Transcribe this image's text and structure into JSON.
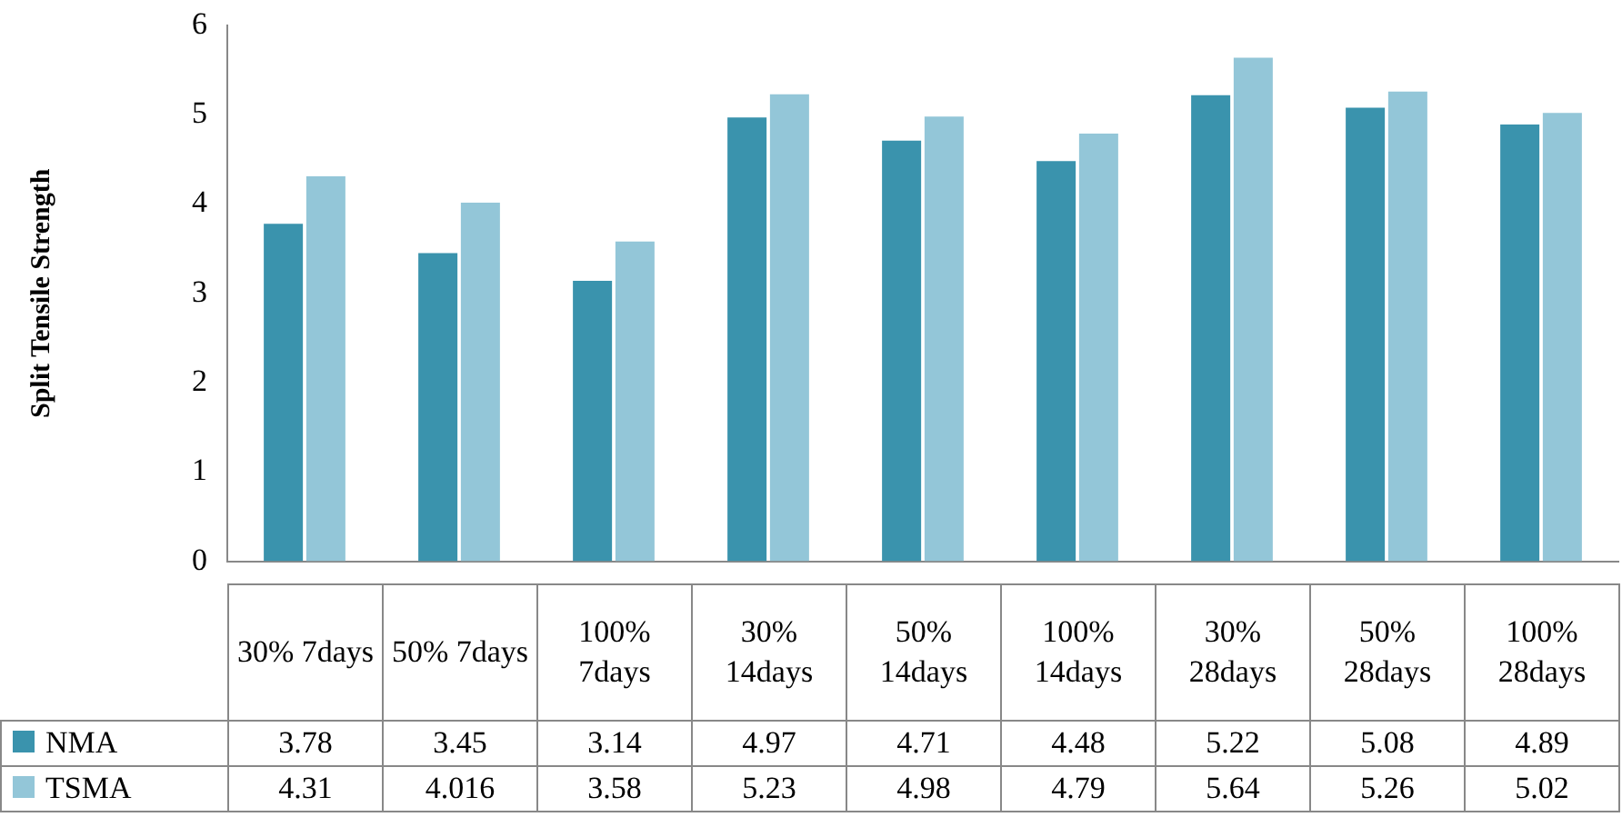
{
  "chart_data": {
    "type": "bar",
    "ylabel": "Split Tensile Strength",
    "categories": [
      "30% 7days",
      "50% 7days",
      "100% 7days",
      "30% 14days",
      "50% 14days",
      "100% 14days",
      "30% 28days",
      "50% 28days",
      "100% 28days"
    ],
    "series": [
      {
        "name": "NMA",
        "color": "#3a93ad",
        "values": [
          3.78,
          3.45,
          3.14,
          4.97,
          4.71,
          4.48,
          5.22,
          5.08,
          4.89
        ]
      },
      {
        "name": "TSMA",
        "color": "#93c6d8",
        "values": [
          4.31,
          4.016,
          3.58,
          5.23,
          4.98,
          4.79,
          5.64,
          5.26,
          5.02
        ]
      }
    ],
    "ylim": [
      0,
      6
    ],
    "yticks": [
      0,
      1,
      2,
      3,
      4,
      5,
      6
    ],
    "grid": false,
    "legend": "bottom",
    "data_labels": true
  }
}
